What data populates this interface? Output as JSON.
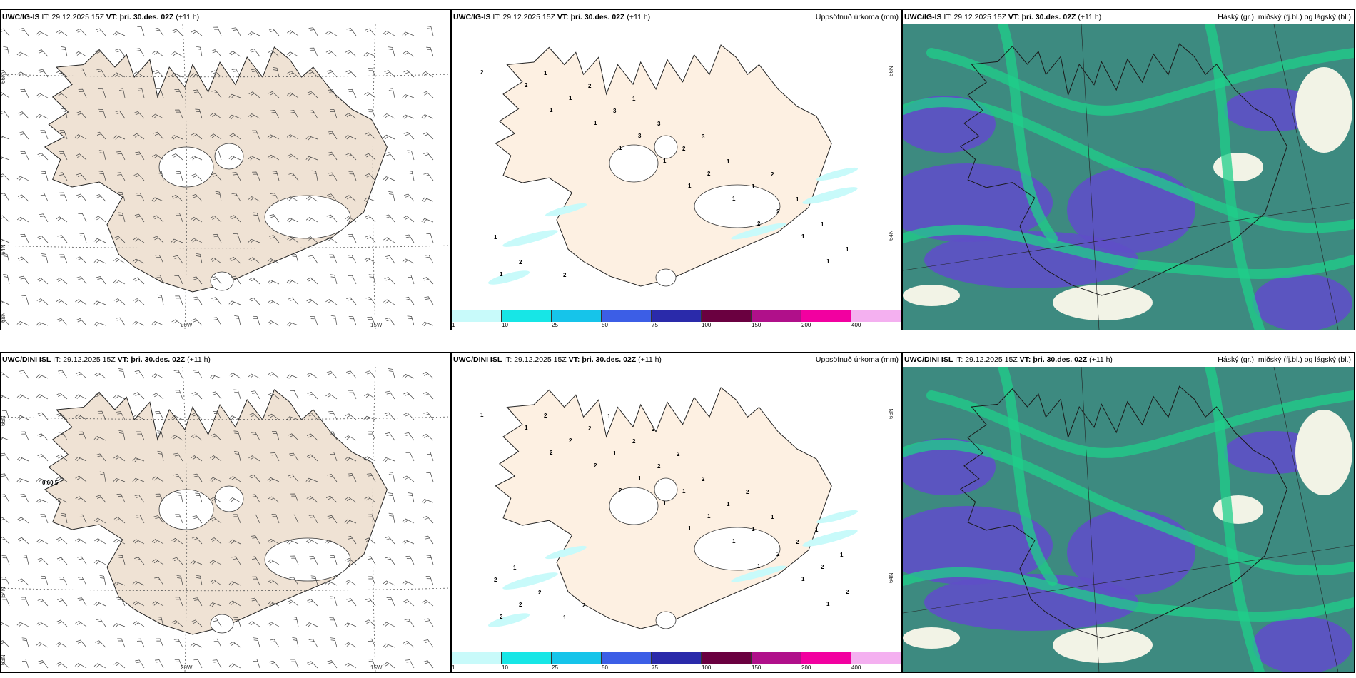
{
  "rows": [
    {
      "wind": {
        "model": "UWC/IG-IS",
        "it_label": "IT:",
        "it": "29.12.2025 15Z",
        "vt_label": "VT:",
        "vt": "þri. 30.des. 02Z",
        "lead": "(+11 h)"
      },
      "precip": {
        "model": "UWC/IG-IS",
        "it_label": "IT:",
        "it": "29.12.2025 15Z",
        "vt_label": "VT:",
        "vt": "þri. 30.des. 02Z",
        "lead": "(+11 h)",
        "right": "Uppsöfnuð úrkoma (mm)",
        "labels": [
          "2",
          "1",
          "1",
          "1",
          "2",
          "1",
          "2",
          "1",
          "1",
          "1",
          "1",
          "1",
          "1",
          "3",
          "2",
          "2",
          "1",
          "1",
          "3",
          "2",
          "1",
          "1",
          "2",
          "2",
          "3",
          "1",
          "1",
          "1",
          "2",
          "1",
          "3",
          "2"
        ]
      },
      "cloud": {
        "model": "UWC/IG-IS",
        "it_label": "IT:",
        "it": "29.12.2025 15Z",
        "vt_label": "VT:",
        "vt": "þri. 30.des. 02Z",
        "lead": "(+11 h)",
        "right": "Háský (gr.), miðský (fj.bl.) og lágský (bl.)"
      }
    },
    {
      "wind": {
        "model": "UWC/DINI ISL",
        "it_label": "IT:",
        "it": "29.12.2025 15Z",
        "vt_label": "VT:",
        "vt": "þri. 30.des. 02Z",
        "lead": "(+11 h)",
        "annot": "0.60.5"
      },
      "precip": {
        "model": "UWC/DINI ISL",
        "it_label": "IT:",
        "it": "29.12.2025 15Z",
        "vt_label": "VT:",
        "vt": "þri. 30.des. 02Z",
        "lead": "(+11 h)",
        "right": "Uppsöfnuð úrkoma (mm)",
        "labels": [
          "1",
          "2",
          "2",
          "1",
          "1",
          "1",
          "1",
          "2",
          "1",
          "1",
          "1",
          "2",
          "2",
          "1",
          "1",
          "2",
          "2",
          "2",
          "1",
          "1",
          "1",
          "2",
          "2",
          "2",
          "2",
          "1",
          "2",
          "2",
          "1",
          "2",
          "2",
          "1",
          "1",
          "2",
          "1",
          "2",
          "2",
          "1",
          "1",
          "2",
          "2"
        ]
      },
      "cloud": {
        "model": "UWC/DINI ISL",
        "it_label": "IT:",
        "it": "29.12.2025 15Z",
        "vt_label": "VT:",
        "vt": "þri. 30.des. 02Z",
        "lead": "(+11 h)",
        "right": "Háský (gr.), miðský (fj.bl.) og lágský (bl.)"
      }
    }
  ],
  "axes": {
    "lat_66": "66N",
    "lat_64": "64N",
    "lat_63": "63N",
    "lon_20": "20W",
    "lon_15": "15W"
  },
  "colorbar": {
    "ticks": [
      "1",
      "10",
      "25",
      "50",
      "75",
      "100",
      "150",
      "200",
      "400"
    ],
    "colors": [
      "#c8fafa",
      "#17e6e6",
      "#16c4ea",
      "#3c5ee6",
      "#2a2aaa",
      "#6a0040",
      "#b0108a",
      "#f200a0",
      "#f4b0f0"
    ]
  },
  "colors": {
    "land": "#efe2d4",
    "land_precip": "#fdf0e2",
    "high_cloud": "#1fcf8a",
    "mid_cloud": "#3d8a80",
    "low_cloud": "#5e4fc6"
  }
}
